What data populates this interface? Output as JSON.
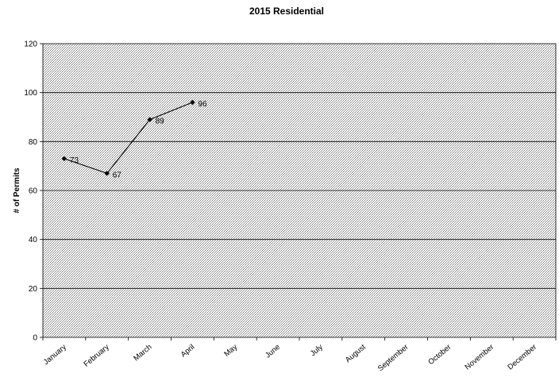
{
  "chart_data": {
    "type": "line",
    "title": "2015 Residential",
    "xlabel": "",
    "ylabel": "# of Permits",
    "categories": [
      "January",
      "February",
      "March",
      "April",
      "May",
      "June",
      "July",
      "August",
      "September",
      "October",
      "November",
      "December"
    ],
    "series": [
      {
        "values": [
          73,
          67,
          89,
          96,
          null,
          null,
          null,
          null,
          null,
          null,
          null,
          null
        ]
      }
    ],
    "ylim": [
      0,
      120
    ],
    "yticks": [
      0,
      20,
      40,
      60,
      80,
      100,
      120
    ],
    "grid": true,
    "legend": "none",
    "colors": {
      "line": "#000000",
      "gridline": "#000000",
      "plot_fill": "#d8d8d8"
    }
  }
}
